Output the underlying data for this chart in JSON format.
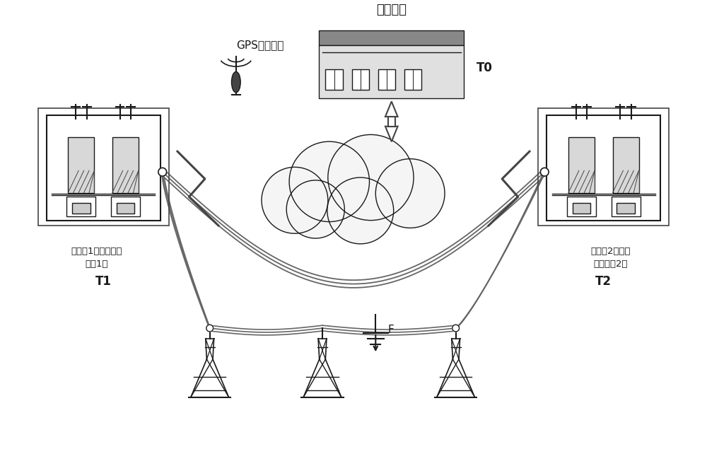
{
  "background_color": "#ffffff",
  "fig_width": 10.0,
  "fig_height": 6.35,
  "texts": {
    "gps_label": "GPS对时装置",
    "system_label": "测距系统",
    "t0_label": "T0",
    "station1_label": "变电站1（行波测距\n装置1）",
    "t1_label": "T1",
    "station2_label": "变电站2（行波\n测距装置2）",
    "t2_label": "T2",
    "fault_label": "F"
  },
  "colors": {
    "black": "#1a1a1a",
    "dark_gray": "#444444",
    "mid_gray": "#888888",
    "light_gray": "#cccccc",
    "box_fill": "#e0e0e0",
    "roof_fill": "#888888",
    "cloud_fill": "#f5f5f5",
    "wire_color": "#666666",
    "subst_fill": "#d8d8d8"
  }
}
